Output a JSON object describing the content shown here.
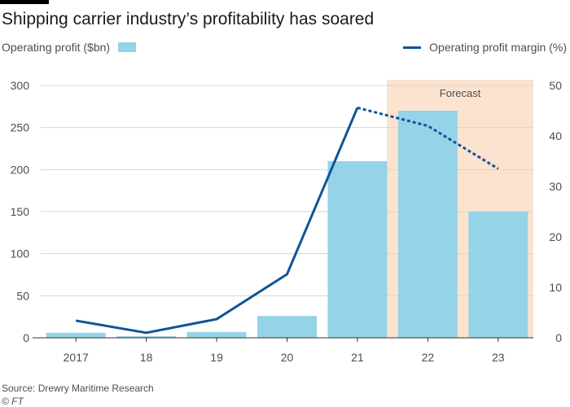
{
  "title": "Shipping carrier industry’s profitability has soared",
  "legend": {
    "bars_label": "Operating profit ($bn)",
    "line_label": "Operating profit margin (%)"
  },
  "colors": {
    "bar": "#95d3e8",
    "line": "#0f5499",
    "forecast_band": "#fbe3d0",
    "grid": "#d9d4cf",
    "axis_text": "#4d4d4d"
  },
  "forecast_label": "Forecast",
  "source": "Source: Drewry Maritime Research",
  "credit": "© FT",
  "chart_data": {
    "type": "bar+line",
    "title": "Shipping carrier industry’s profitability has soared",
    "categories": [
      "2017",
      "18",
      "19",
      "20",
      "21",
      "22",
      "23"
    ],
    "series": [
      {
        "name": "Operating profit ($bn)",
        "type": "bar",
        "axis": "left",
        "values": [
          6,
          2,
          7,
          26,
          210,
          270,
          150
        ]
      },
      {
        "name": "Operating profit margin (%)",
        "type": "line",
        "axis": "right",
        "values": [
          3.4,
          1,
          3.7,
          12.6,
          45.6,
          42,
          33.5
        ],
        "forecast_from_index": 4
      }
    ],
    "forecast_categories": [
      "22",
      "23"
    ],
    "y_left": {
      "min": 0,
      "max": 300,
      "ticks": [
        0,
        50,
        100,
        150,
        200,
        250,
        300
      ]
    },
    "y_right": {
      "min": 0,
      "max": 50,
      "ticks": [
        0,
        10,
        20,
        30,
        40,
        50
      ]
    },
    "grid": true,
    "legend_position": "top"
  }
}
